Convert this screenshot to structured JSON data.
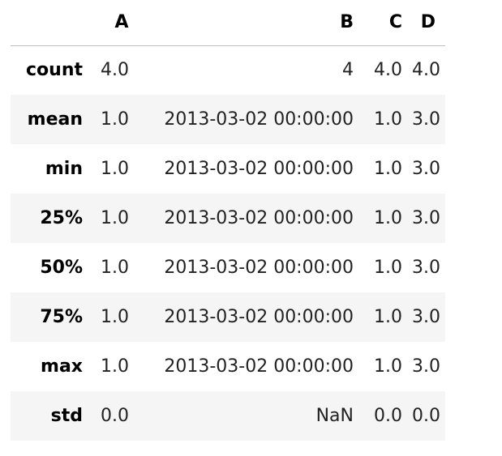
{
  "table": {
    "columns": [
      "A",
      "B",
      "C",
      "D"
    ],
    "rows": [
      {
        "index": "count",
        "cells": [
          "4.0",
          "4",
          "4.0",
          "4.0"
        ]
      },
      {
        "index": "mean",
        "cells": [
          "1.0",
          "2013-03-02 00:00:00",
          "1.0",
          "3.0"
        ]
      },
      {
        "index": "min",
        "cells": [
          "1.0",
          "2013-03-02 00:00:00",
          "1.0",
          "3.0"
        ]
      },
      {
        "index": "25%",
        "cells": [
          "1.0",
          "2013-03-02 00:00:00",
          "1.0",
          "3.0"
        ]
      },
      {
        "index": "50%",
        "cells": [
          "1.0",
          "2013-03-02 00:00:00",
          "1.0",
          "3.0"
        ]
      },
      {
        "index": "75%",
        "cells": [
          "1.0",
          "2013-03-02 00:00:00",
          "1.0",
          "3.0"
        ]
      },
      {
        "index": "max",
        "cells": [
          "1.0",
          "2013-03-02 00:00:00",
          "1.0",
          "3.0"
        ]
      },
      {
        "index": "std",
        "cells": [
          "0.0",
          "NaN",
          "0.0",
          "0.0"
        ]
      }
    ]
  },
  "colors": {
    "stripe": "#f5f5f5",
    "header_rule": "#bdbdbd"
  }
}
